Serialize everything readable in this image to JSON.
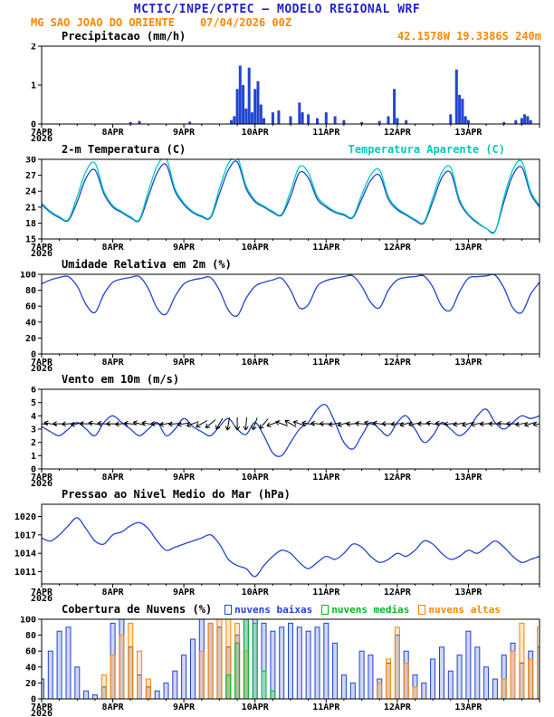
{
  "header": {
    "title": "MCTIC/INPE/CPTEC — MODELO REGIONAL WRF",
    "station": "MG SAO JOAO DO ORIENTE",
    "run": "07/04/2026 00Z",
    "coords": "42.1578W 19.3386S 240m"
  },
  "colors": {
    "title_blue": "#2222cc",
    "orange": "#ff8800",
    "line_blue": "#2244d0",
    "cyan": "#00ccb8",
    "green": "#00bb22",
    "ink": "#000000"
  },
  "x_axis": {
    "start_hour": 0,
    "end_hour": 168,
    "day_labels": [
      {
        "hour": 0,
        "label": "7APR",
        "sub": "2026"
      },
      {
        "hour": 24,
        "label": "8APR"
      },
      {
        "hour": 48,
        "label": "9APR"
      },
      {
        "hour": 72,
        "label": "10APR"
      },
      {
        "hour": 96,
        "label": "11APR"
      },
      {
        "hour": 120,
        "label": "12APR"
      },
      {
        "hour": 144,
        "label": "13APR"
      }
    ]
  },
  "chart_data": [
    {
      "type": "bar",
      "title": "Precipitacao (mm/h)",
      "ylim": [
        0,
        2
      ],
      "yticks": [
        0,
        1,
        2
      ],
      "bar_color_key": "line_blue",
      "bars": [
        [
          30,
          0.05
        ],
        [
          33,
          0.08
        ],
        [
          50,
          0.06
        ],
        [
          64,
          0.1
        ],
        [
          65,
          0.2
        ],
        [
          66,
          0.9
        ],
        [
          67,
          1.5
        ],
        [
          68,
          1.0
        ],
        [
          69,
          0.4
        ],
        [
          70,
          1.45
        ],
        [
          71,
          0.3
        ],
        [
          72,
          0.9
        ],
        [
          73,
          1.1
        ],
        [
          74,
          0.5
        ],
        [
          75,
          0.15
        ],
        [
          78,
          0.3
        ],
        [
          80,
          0.35
        ],
        [
          84,
          0.2
        ],
        [
          87,
          0.55
        ],
        [
          88,
          0.3
        ],
        [
          90,
          0.25
        ],
        [
          93,
          0.15
        ],
        [
          96,
          0.3
        ],
        [
          99,
          0.2
        ],
        [
          102,
          0.1
        ],
        [
          108,
          0.05
        ],
        [
          114,
          0.08
        ],
        [
          117,
          0.2
        ],
        [
          119,
          0.9
        ],
        [
          120,
          0.15
        ],
        [
          123,
          0.1
        ],
        [
          138,
          0.25
        ],
        [
          140,
          1.4
        ],
        [
          141,
          0.75
        ],
        [
          142,
          0.65
        ],
        [
          143,
          0.2
        ],
        [
          144,
          0.1
        ],
        [
          156,
          0.05
        ],
        [
          160,
          0.1
        ],
        [
          162,
          0.15
        ],
        [
          163,
          0.25
        ],
        [
          164,
          0.2
        ],
        [
          165,
          0.1
        ]
      ]
    },
    {
      "type": "line",
      "title": "2-m Temperatura (C)",
      "title2": "Temperatura Aparente (C)",
      "ylim": [
        15,
        30
      ],
      "yticks": [
        15,
        18,
        21,
        24,
        27,
        30
      ],
      "series": [
        {
          "name": "2-m Temperatura (C)",
          "color_key": "line_blue",
          "step_hours": 3,
          "values": [
            21.5,
            20,
            19,
            18.5,
            22,
            26.5,
            28,
            23.5,
            21,
            20,
            19,
            18.5,
            23,
            27.5,
            29,
            24,
            21.5,
            20,
            19.2,
            19,
            23.5,
            28,
            29.5,
            24.5,
            22,
            21,
            20,
            19.5,
            23,
            27.5,
            26.5,
            22.5,
            21,
            20,
            19.5,
            19,
            22.5,
            26,
            27,
            22.5,
            20.5,
            19.5,
            18.5,
            18,
            22,
            26.5,
            27.5,
            22,
            19.5,
            18,
            17,
            16.5,
            22,
            27,
            28.5,
            23.5,
            21
          ]
        },
        {
          "name": "Temperatura Aparente (C)",
          "color_key": "cyan",
          "step_hours": 3,
          "values": [
            21.8,
            20.2,
            19.2,
            18.7,
            23,
            27.8,
            29.3,
            24,
            21.3,
            20.2,
            19.2,
            18.7,
            24,
            28.8,
            30.2,
            24.5,
            21.8,
            20.2,
            19.4,
            19.2,
            24.5,
            29.2,
            30.4,
            25,
            22.3,
            21.2,
            20.2,
            19.7,
            24,
            28.6,
            27.5,
            23,
            21.3,
            20.2,
            19.7,
            19.2,
            23.3,
            27,
            28,
            23,
            20.8,
            19.7,
            18.7,
            18.2,
            22.8,
            27.5,
            28.5,
            22.5,
            19.7,
            18.2,
            17,
            16.4,
            22.8,
            28,
            29.6,
            24,
            21.3
          ]
        }
      ]
    },
    {
      "type": "line",
      "title": "Umidade Relativa em 2m (%)",
      "ylim": [
        0,
        100
      ],
      "yticks": [
        0,
        20,
        40,
        60,
        80,
        100
      ],
      "series": [
        {
          "name": "Umidade Relativa em 2m (%)",
          "color_key": "line_blue",
          "step_hours": 3,
          "values": [
            88,
            93,
            96,
            97,
            85,
            62,
            52,
            75,
            90,
            94,
            96,
            97,
            82,
            57,
            50,
            72,
            88,
            93,
            95,
            96,
            80,
            55,
            48,
            70,
            85,
            90,
            93,
            95,
            80,
            58,
            62,
            85,
            92,
            95,
            97,
            98,
            85,
            65,
            58,
            80,
            93,
            96,
            97,
            98,
            84,
            60,
            55,
            78,
            95,
            97,
            98,
            99,
            83,
            58,
            52,
            75,
            90
          ]
        }
      ]
    },
    {
      "type": "line",
      "title": "Vento em 10m (m/s)",
      "ylim": [
        0,
        6
      ],
      "yticks": [
        0,
        1,
        2,
        3,
        4,
        5,
        6
      ],
      "series": [
        {
          "name": "Vento em 10m (m/s)",
          "color_key": "line_blue",
          "step_hours": 3,
          "values": [
            3.2,
            2.8,
            2.5,
            3,
            3.5,
            3,
            2.5,
            3.5,
            4,
            3.5,
            3,
            2.5,
            3,
            3.5,
            2.5,
            3,
            3.8,
            3.2,
            2.8,
            2.5,
            3.2,
            3.8,
            3,
            2.6,
            3.5,
            2.5,
            1.2,
            1,
            2,
            3,
            3.5,
            4.5,
            4.8,
            3.5,
            2,
            1.5,
            2.5,
            3.5,
            3,
            2.5,
            3.5,
            4,
            3,
            2,
            2.5,
            3.5,
            3,
            2.5,
            3,
            4,
            4.5,
            3.5,
            3,
            3.5,
            4,
            3.8,
            4
          ]
        }
      ],
      "barbs": {
        "anchor_value": 3.4,
        "step_hours": 3,
        "directions_deg": [
          185,
          190,
          180,
          175,
          170,
          180,
          190,
          185,
          180,
          175,
          185,
          195,
          190,
          180,
          170,
          175,
          170,
          160,
          150,
          140,
          120,
          100,
          90,
          95,
          110,
          130,
          160,
          200,
          210,
          200,
          190,
          185,
          180,
          170,
          165,
          175,
          185,
          195,
          190,
          180,
          175,
          165,
          170,
          180,
          190,
          185,
          175,
          170,
          165,
          170,
          175,
          180,
          185,
          180,
          170,
          165,
          170
        ]
      }
    },
    {
      "type": "line",
      "title": "Pressao ao Nivel Medio do Mar (hPa)",
      "ylim": [
        1009,
        1022
      ],
      "yticks": [
        1011,
        1014,
        1017,
        1020
      ],
      "series": [
        {
          "name": "Pressao ao Nivel Medio do Mar (hPa)",
          "color_key": "line_blue",
          "step_hours": 3,
          "values": [
            1016.5,
            1016,
            1017,
            1018.5,
            1019.8,
            1018,
            1016,
            1015.5,
            1017,
            1017.5,
            1018.5,
            1019,
            1018,
            1016,
            1014.5,
            1015,
            1015.5,
            1016,
            1016.5,
            1017,
            1015.5,
            1013,
            1012,
            1011.5,
            1010.2,
            1012,
            1013.5,
            1014.5,
            1014,
            1012.5,
            1011.5,
            1012.5,
            1013.5,
            1013,
            1014,
            1015.5,
            1015,
            1013.5,
            1012.5,
            1013,
            1014,
            1013.5,
            1014.5,
            1016,
            1015.5,
            1014,
            1013,
            1013.5,
            1014.5,
            1014,
            1015,
            1016,
            1015,
            1013.5,
            1012.5,
            1013,
            1013.5
          ]
        }
      ]
    },
    {
      "type": "bar",
      "title": "Cobertura de Nuvens (%)",
      "ylim": [
        0,
        100
      ],
      "yticks": [
        0,
        20,
        40,
        60,
        80,
        100
      ],
      "legend": [
        {
          "label": "nuvens baixas",
          "color_key": "line_blue"
        },
        {
          "label": "nuvens medias",
          "color_key": "green"
        },
        {
          "label": "nuvens altas",
          "color_key": "orange"
        }
      ],
      "bar_series": [
        {
          "name": "nuvens baixas",
          "color_key": "line_blue",
          "step_hours": 3,
          "values": [
            25,
            60,
            85,
            90,
            40,
            10,
            5,
            15,
            95,
            100,
            65,
            30,
            15,
            10,
            20,
            35,
            55,
            75,
            100,
            95,
            90,
            65,
            80,
            100,
            100,
            95,
            85,
            90,
            95,
            90,
            85,
            90,
            95,
            70,
            30,
            20,
            60,
            55,
            25,
            45,
            80,
            60,
            30,
            20,
            50,
            65,
            35,
            55,
            85,
            65,
            40,
            25,
            55,
            70,
            45,
            60,
            65
          ]
        },
        {
          "name": "nuvens altas",
          "color_key": "orange",
          "step_hours": 3,
          "values": [
            0,
            0,
            0,
            0,
            0,
            0,
            0,
            30,
            55,
            80,
            95,
            60,
            25,
            0,
            0,
            0,
            0,
            0,
            60,
            95,
            100,
            100,
            95,
            60,
            0,
            0,
            0,
            0,
            0,
            0,
            0,
            0,
            0,
            0,
            0,
            0,
            0,
            0,
            20,
            50,
            90,
            45,
            15,
            0,
            0,
            0,
            0,
            0,
            0,
            0,
            0,
            0,
            25,
            60,
            95,
            50,
            90
          ]
        },
        {
          "name": "nuvens medias",
          "color_key": "green",
          "step_hours": 3,
          "values": [
            0,
            0,
            0,
            0,
            0,
            0,
            0,
            0,
            0,
            0,
            0,
            0,
            0,
            0,
            0,
            0,
            0,
            0,
            0,
            0,
            0,
            30,
            70,
            100,
            95,
            35,
            10,
            0,
            0,
            0,
            0,
            0,
            0,
            0,
            0,
            0,
            0,
            0,
            0,
            0,
            0,
            0,
            0,
            0,
            0,
            0,
            0,
            0,
            0,
            0,
            0,
            0,
            0,
            0,
            0,
            0,
            0
          ]
        }
      ]
    }
  ]
}
